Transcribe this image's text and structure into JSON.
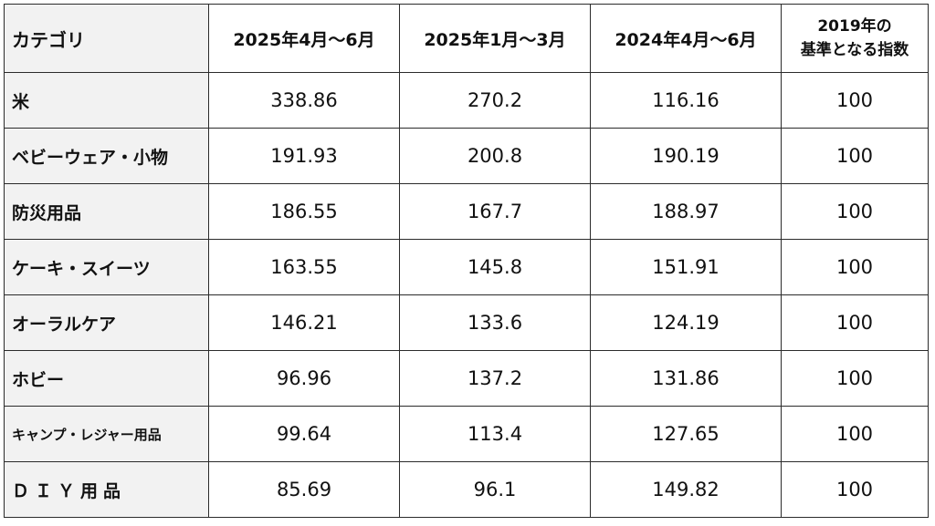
{
  "table": {
    "headers": {
      "category": "カテゴリ",
      "q2_2025": "2025年4月～6月",
      "q1_2025": "2025年1月～3月",
      "q2_2024": "2024年4月～6月",
      "base_line1": "2019年の",
      "base_line2": "基準となる指数"
    },
    "rows": [
      {
        "category": "米",
        "q2_2025": "338.86",
        "q1_2025": "270.2",
        "q2_2024": "116.16",
        "base": "100"
      },
      {
        "category": "ベビーウェア・小物",
        "q2_2025": "191.93",
        "q1_2025": "200.8",
        "q2_2024": "190.19",
        "base": "100"
      },
      {
        "category": "防災用品",
        "q2_2025": "186.55",
        "q1_2025": "167.7",
        "q2_2024": "188.97",
        "base": "100"
      },
      {
        "category": "ケーキ・スイーツ",
        "q2_2025": "163.55",
        "q1_2025": "145.8",
        "q2_2024": "151.91",
        "base": "100"
      },
      {
        "category": "オーラルケア",
        "q2_2025": "146.21",
        "q1_2025": "133.6",
        "q2_2024": "124.19",
        "base": "100"
      },
      {
        "category": "ホビー",
        "q2_2025": "96.96",
        "q1_2025": "137.2",
        "q2_2024": "131.86",
        "base": "100"
      },
      {
        "category": "キャンプ・レジャー用品",
        "q2_2025": "99.64",
        "q1_2025": "113.4",
        "q2_2024": "127.65",
        "base": "100"
      },
      {
        "category": "ＤＩＹ用品",
        "q2_2025": "85.69",
        "q1_2025": "96.1",
        "q2_2024": "149.82",
        "base": "100"
      }
    ]
  }
}
